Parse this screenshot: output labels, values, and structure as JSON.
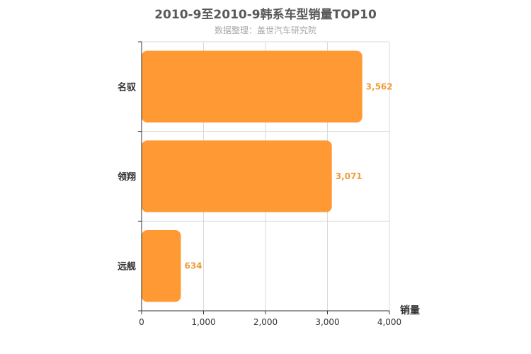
{
  "chart_data": {
    "type": "bar",
    "orientation": "horizontal",
    "title": "2010-9至2010-9韩系车型销量TOP10",
    "subtitle": "数据整理：盖世汽车研究院",
    "categories": [
      "名驭",
      "领翔",
      "远舰"
    ],
    "values": [
      3562,
      3071,
      634
    ],
    "value_labels": [
      "3,562",
      "3,071",
      "634"
    ],
    "xlabel": "销量",
    "ylabel": "",
    "xlim": [
      0,
      4000
    ],
    "x_ticks": [
      0,
      1000,
      2000,
      3000,
      4000
    ],
    "x_tick_labels": [
      "0",
      "1,000",
      "2,000",
      "3,000",
      "4,000"
    ],
    "grid": true,
    "bar_color": "#ff9933",
    "value_label_color": "#f29a37"
  }
}
